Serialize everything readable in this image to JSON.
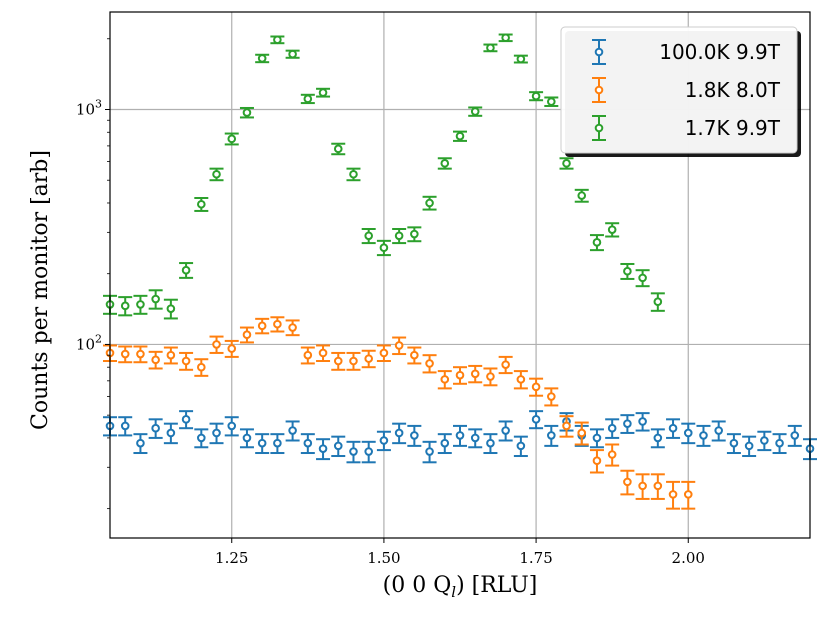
{
  "chart_data": {
    "type": "scatter",
    "xlabel": "(0 0 Q",
    "xlabel_sub": "l",
    "xlabel_tail": ") [RLU]",
    "ylabel": "Counts per monitor [arb]",
    "xlim": [
      1.05,
      2.2
    ],
    "ylim": [
      15,
      2600
    ],
    "yscale": "log",
    "grid": true,
    "legend_position": "top-right",
    "x_ticks": [
      {
        "value": 1.25,
        "label": "1.25"
      },
      {
        "value": 1.5,
        "label": "1.50"
      },
      {
        "value": 1.75,
        "label": "1.75"
      },
      {
        "value": 2.0,
        "label": "2.00"
      }
    ],
    "y_ticks": [
      {
        "value": 100,
        "base": "10",
        "exp": "2"
      },
      {
        "value": 1000,
        "base": "10",
        "exp": "3"
      }
    ],
    "series": [
      {
        "name": "100.0K 9.9T",
        "color": "#1f77b4",
        "x": [
          1.05,
          1.075,
          1.1,
          1.125,
          1.15,
          1.175,
          1.2,
          1.225,
          1.25,
          1.275,
          1.3,
          1.325,
          1.35,
          1.375,
          1.4,
          1.425,
          1.45,
          1.475,
          1.5,
          1.525,
          1.55,
          1.575,
          1.6,
          1.625,
          1.65,
          1.675,
          1.7,
          1.725,
          1.75,
          1.775,
          1.8,
          1.825,
          1.85,
          1.875,
          1.9,
          1.925,
          1.95,
          1.975,
          2.0,
          2.025,
          2.05,
          2.075,
          2.1,
          2.125,
          2.15,
          2.175,
          2.2
        ],
        "y": [
          45,
          45,
          38,
          44,
          42,
          48,
          40,
          42,
          45,
          40,
          38,
          38,
          43,
          38,
          36,
          37,
          35,
          35,
          39,
          42,
          41,
          35,
          38,
          41,
          40,
          38,
          43,
          37,
          48,
          41,
          47,
          41,
          40,
          44,
          46,
          47,
          40,
          44,
          42,
          41,
          43,
          38,
          37,
          39,
          38,
          41,
          36
        ],
        "err": [
          4,
          4,
          3.5,
          4,
          4,
          4,
          3.5,
          4,
          4,
          3.5,
          3.5,
          3.5,
          4,
          3.5,
          3.5,
          3.5,
          3.5,
          3.5,
          3.5,
          4,
          4,
          3.5,
          3.5,
          4,
          3.5,
          3.5,
          4,
          3.5,
          4,
          4,
          4,
          4,
          3.5,
          4,
          4,
          4,
          3.5,
          4,
          4,
          4,
          4,
          3.5,
          3.5,
          3.5,
          3.5,
          4,
          3.5
        ]
      },
      {
        "name": "1.8K 8.0T",
        "color": "#ff7f0e",
        "x": [
          1.05,
          1.075,
          1.1,
          1.125,
          1.15,
          1.175,
          1.2,
          1.225,
          1.25,
          1.275,
          1.3,
          1.325,
          1.35,
          1.375,
          1.4,
          1.425,
          1.45,
          1.475,
          1.5,
          1.525,
          1.55,
          1.575,
          1.6,
          1.625,
          1.65,
          1.675,
          1.7,
          1.725,
          1.75,
          1.775,
          1.8,
          1.825,
          1.85,
          1.875,
          1.9,
          1.925,
          1.95,
          1.975,
          2.0
        ],
        "y": [
          92,
          91,
          91,
          86,
          90,
          85,
          80,
          100,
          96,
          110,
          120,
          122,
          118,
          90,
          92,
          85,
          85,
          87,
          92,
          99,
          90,
          83,
          71,
          74,
          75,
          73,
          82,
          71,
          66,
          60,
          45,
          42,
          32,
          34,
          26,
          25,
          25,
          23,
          23
        ],
        "err": [
          7,
          7,
          7,
          7,
          7,
          7,
          6.5,
          8,
          7.5,
          8,
          8.5,
          8.5,
          8.5,
          7,
          7,
          7,
          7,
          7,
          7,
          8,
          7,
          7,
          6,
          6,
          6,
          6,
          6.5,
          6,
          5.5,
          5,
          4.5,
          4.5,
          3.5,
          3.5,
          3,
          3,
          3,
          3,
          3
        ]
      },
      {
        "name": "1.7K 9.9T",
        "color": "#2ca02c",
        "x": [
          1.05,
          1.075,
          1.1,
          1.125,
          1.15,
          1.175,
          1.2,
          1.225,
          1.25,
          1.275,
          1.3,
          1.325,
          1.35,
          1.375,
          1.4,
          1.425,
          1.45,
          1.475,
          1.5,
          1.525,
          1.55,
          1.575,
          1.6,
          1.625,
          1.65,
          1.675,
          1.7,
          1.725,
          1.75,
          1.775,
          1.8,
          1.825,
          1.85,
          1.875,
          1.9,
          1.925,
          1.95
        ],
        "y": [
          148,
          146,
          148,
          156,
          142,
          207,
          395,
          530,
          750,
          970,
          1650,
          1980,
          1720,
          1110,
          1180,
          680,
          530,
          290,
          258,
          290,
          295,
          400,
          590,
          770,
          980,
          1830,
          2020,
          1640,
          1140,
          1080,
          590,
          430,
          272,
          308,
          205,
          192,
          152
        ],
        "err": [
          13,
          13,
          13,
          14,
          13,
          15,
          25,
          30,
          40,
          45,
          60,
          65,
          60,
          45,
          45,
          35,
          30,
          20,
          18,
          20,
          20,
          25,
          30,
          35,
          40,
          60,
          65,
          55,
          45,
          45,
          30,
          25,
          20,
          20,
          15,
          15,
          13
        ]
      }
    ]
  }
}
